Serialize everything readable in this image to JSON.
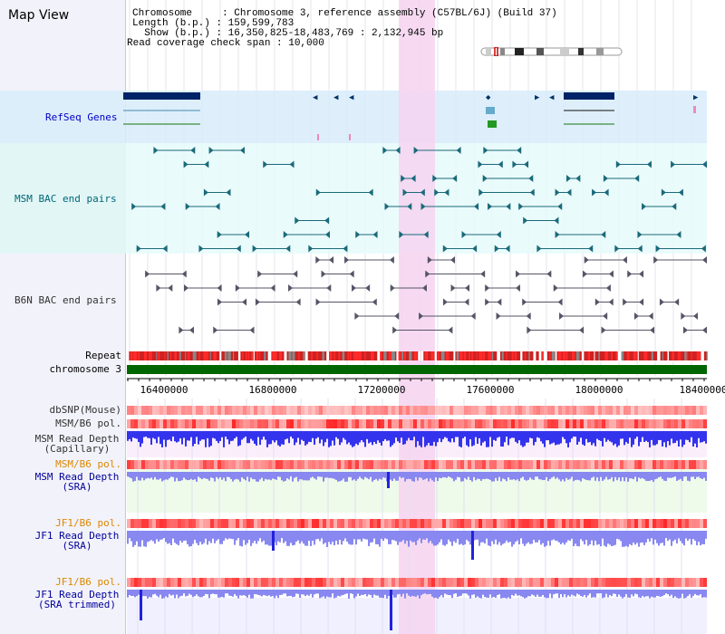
{
  "header": {
    "title": "Map View",
    "info_lines": [
      "Chromosome     : Chromosome 3, reference assembly (C57BL/6J) (Build 37)",
      "Length (b.p.) : 159,599,783",
      "  Show (b.p.) : 16,350,825-18,483,769 : 2,132,945 bp",
      "Read coverage check span : 10,000"
    ]
  },
  "tracks": {
    "refseq": {
      "label": "RefSeq Genes",
      "color": "#0000cc"
    },
    "msm_bac": {
      "label": "MSM BAC end pairs",
      "color": "#006677"
    },
    "b6n_bac": {
      "label": "B6N BAC end pairs",
      "color": "#333333"
    },
    "repeat": {
      "label": "Repeat"
    },
    "chromosome": {
      "label": "chromosome 3"
    },
    "dbsnp": {
      "label": "dbSNP(Mouse)"
    },
    "msm_pol_1": {
      "label": "MSM/B6 pol."
    },
    "msm_depth_cap": {
      "label_1": "MSM Read Depth",
      "label_2": "(Capillary)"
    },
    "msm_pol_2": {
      "label": "MSM/B6 pol."
    },
    "msm_depth_sra": {
      "label_1": "MSM Read Depth",
      "label_2": "(SRA)"
    },
    "jf1_pol_1": {
      "label": "JF1/B6 pol."
    },
    "jf1_depth_sra": {
      "label_1": "JF1 Read Depth",
      "label_2": "(SRA)"
    },
    "jf1_pol_2": {
      "label": "JF1/B6 pol."
    },
    "jf1_depth_trim": {
      "label_1": "JF1 Read Depth",
      "label_2": "(SRA trimmed)"
    }
  },
  "axis": {
    "ticks": [
      "16400000",
      "16800000",
      "17200000",
      "17600000",
      "18000000",
      "18400000"
    ]
  },
  "colors": {
    "highlight": "#f6d4f0",
    "refseq_bg": "#d8ecfa",
    "bac_bg": "#e6fafa",
    "chromosome": "#006600",
    "depth_blue": "#3333ee",
    "depth_light": "#8888f0",
    "orange_label": "#dd8800",
    "navy_label": "#000099",
    "gray_label": "#333333"
  }
}
